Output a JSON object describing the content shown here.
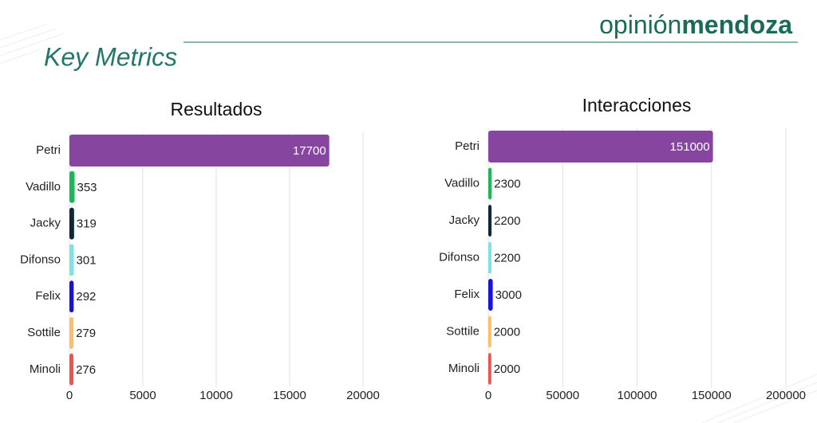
{
  "header": {
    "brand_light": "opinión",
    "brand_bold": "mendoza",
    "title": "Key Metrics"
  },
  "chart_data": [
    {
      "type": "barh",
      "title": "Resultados",
      "categories": [
        "Petri",
        "Vadillo",
        "Jacky",
        "Difonso",
        "Felix",
        "Sottile",
        "Minoli"
      ],
      "values": [
        17700,
        353,
        319,
        301,
        292,
        279,
        276
      ],
      "colors": [
        "#8646a0",
        "#1fb65a",
        "#0e2a3a",
        "#7fe0e6",
        "#1a12d6",
        "#fbbf68",
        "#ef5350"
      ],
      "xlim": [
        0,
        20000
      ],
      "xticks": [
        0,
        5000,
        10000,
        15000,
        20000
      ],
      "grid": true
    },
    {
      "type": "barh",
      "title": "Interacciones",
      "categories": [
        "Petri",
        "Vadillo",
        "Jacky",
        "Difonso",
        "Felix",
        "Sottile",
        "Minoli"
      ],
      "values": [
        151000,
        2300,
        2200,
        2200,
        3000,
        2000,
        2000
      ],
      "colors": [
        "#8646a0",
        "#1fb65a",
        "#0e2a3a",
        "#7fe0e6",
        "#1a12d6",
        "#fbbf68",
        "#ef5350"
      ],
      "xlim": [
        0,
        200000
      ],
      "xticks": [
        0,
        50000,
        100000,
        150000,
        200000
      ],
      "grid": true
    }
  ]
}
